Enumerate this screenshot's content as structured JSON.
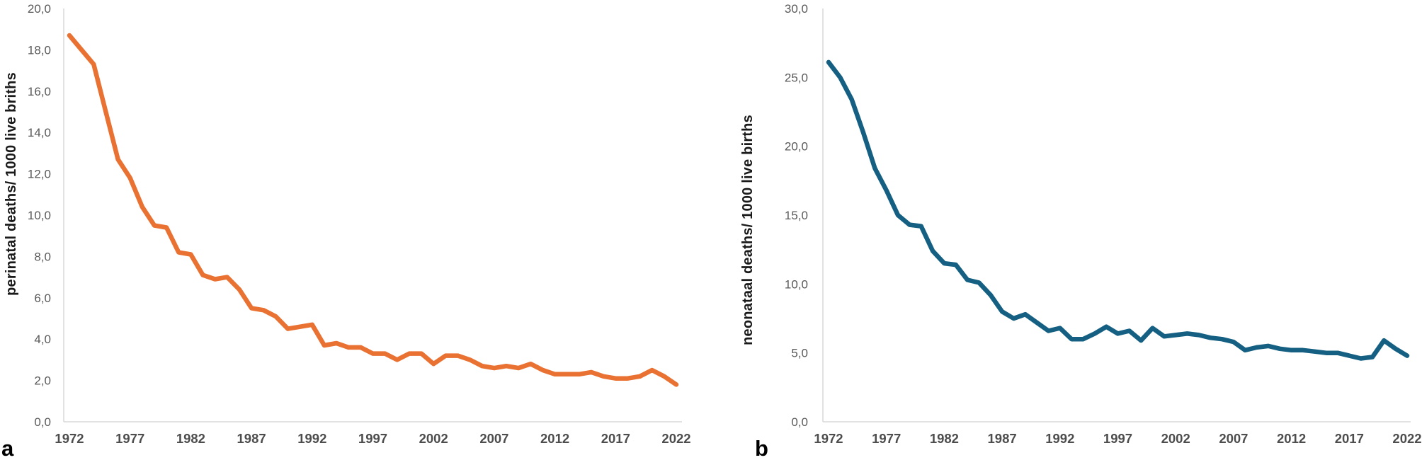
{
  "styles": {
    "background": "#ffffff",
    "axis_line_color": "#d9d9d9",
    "y_tick_color": "#595959",
    "x_tick_color": "#4d4d4d",
    "axis_title_color": "#1a1a1a",
    "panel_letter_color": "#000000"
  },
  "chart_data": [
    {
      "panel_label": "a",
      "type": "line",
      "title": "",
      "xlabel": "",
      "ylabel": "perinatal deaths/ 1000 live briths",
      "line_color": "#E97132",
      "ylim": [
        0,
        20
      ],
      "xlim": [
        1972,
        2022
      ],
      "grid": false,
      "legend": "none",
      "y_tick_values": [
        0,
        2,
        4,
        6,
        8,
        10,
        12,
        14,
        16,
        18,
        20
      ],
      "y_tick_labels": [
        "0,0",
        "2,0",
        "4,0",
        "6,0",
        "8,0",
        "10,0",
        "12,0",
        "14,0",
        "16,0",
        "18,0",
        "20,0"
      ],
      "x_tick_values": [
        1972,
        1977,
        1982,
        1987,
        1992,
        1997,
        2002,
        2007,
        2012,
        2017,
        2022
      ],
      "x_tick_labels": [
        "1972",
        "1977",
        "1982",
        "1987",
        "1992",
        "1997",
        "2002",
        "2007",
        "2012",
        "2017",
        "2022"
      ],
      "x": [
        1972,
        1973,
        1974,
        1975,
        1976,
        1977,
        1978,
        1979,
        1980,
        1981,
        1982,
        1983,
        1984,
        1985,
        1986,
        1987,
        1988,
        1989,
        1990,
        1991,
        1992,
        1993,
        1994,
        1995,
        1996,
        1997,
        1998,
        1999,
        2000,
        2001,
        2002,
        2003,
        2004,
        2005,
        2006,
        2007,
        2008,
        2009,
        2010,
        2011,
        2012,
        2013,
        2014,
        2015,
        2016,
        2017,
        2018,
        2019,
        2020,
        2021,
        2022
      ],
      "values": [
        18.7,
        18.0,
        17.3,
        15.0,
        12.7,
        11.8,
        10.4,
        9.5,
        9.4,
        8.2,
        8.1,
        7.1,
        6.9,
        7.0,
        6.4,
        5.5,
        5.4,
        5.1,
        4.5,
        4.6,
        4.7,
        3.7,
        3.8,
        3.6,
        3.6,
        3.3,
        3.3,
        3.0,
        3.3,
        3.3,
        2.8,
        3.2,
        3.2,
        3.0,
        2.7,
        2.6,
        2.7,
        2.6,
        2.8,
        2.5,
        2.3,
        2.3,
        2.3,
        2.4,
        2.2,
        2.1,
        2.1,
        2.2,
        2.5,
        2.2,
        1.8
      ]
    },
    {
      "panel_label": "b",
      "type": "line",
      "title": "",
      "xlabel": "",
      "ylabel": "neonataal deaths/ 1000 live births",
      "line_color": "#156082",
      "ylim": [
        0,
        30
      ],
      "xlim": [
        1972,
        2022
      ],
      "grid": false,
      "legend": "none",
      "y_tick_values": [
        0,
        5,
        10,
        15,
        20,
        25,
        30
      ],
      "y_tick_labels": [
        "0,0",
        "5,0",
        "10,0",
        "15,0",
        "20,0",
        "25,0",
        "30,0"
      ],
      "x_tick_values": [
        1972,
        1977,
        1982,
        1987,
        1992,
        1997,
        2002,
        2007,
        2012,
        2017,
        2022
      ],
      "x_tick_labels": [
        "1972",
        "1977",
        "1982",
        "1987",
        "1992",
        "1997",
        "2002",
        "2007",
        "2012",
        "2017",
        "2022"
      ],
      "x": [
        1972,
        1973,
        1974,
        1975,
        1976,
        1977,
        1978,
        1979,
        1980,
        1981,
        1982,
        1983,
        1984,
        1985,
        1986,
        1987,
        1988,
        1989,
        1990,
        1991,
        1992,
        1993,
        1994,
        1995,
        1996,
        1997,
        1998,
        1999,
        2000,
        2001,
        2002,
        2003,
        2004,
        2005,
        2006,
        2007,
        2008,
        2009,
        2010,
        2011,
        2012,
        2013,
        2014,
        2015,
        2016,
        2017,
        2018,
        2019,
        2020,
        2021,
        2022
      ],
      "values": [
        26.1,
        25.0,
        23.4,
        21.0,
        18.4,
        16.8,
        15.0,
        14.3,
        14.2,
        12.4,
        11.5,
        11.4,
        10.3,
        10.1,
        9.2,
        8.0,
        7.5,
        7.8,
        7.2,
        6.6,
        6.8,
        6.0,
        6.0,
        6.4,
        6.9,
        6.4,
        6.6,
        5.9,
        6.8,
        6.2,
        6.3,
        6.4,
        6.3,
        6.1,
        6.0,
        5.8,
        5.2,
        5.4,
        5.5,
        5.3,
        5.2,
        5.2,
        5.1,
        5.0,
        5.0,
        4.8,
        4.6,
        4.7,
        5.9,
        5.3,
        4.8
      ]
    }
  ]
}
